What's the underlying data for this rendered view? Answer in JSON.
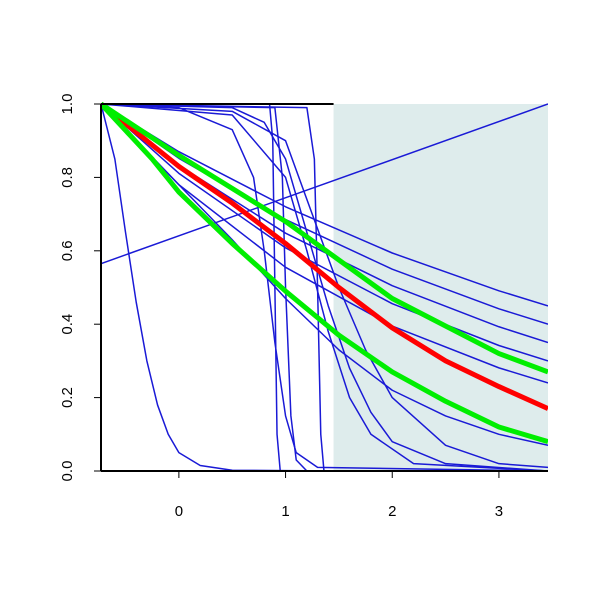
{
  "chart_data": {
    "type": "line",
    "xlim": [
      -0.73,
      3.46
    ],
    "ylim": [
      0,
      1
    ],
    "xticks": [
      0,
      1,
      2,
      3
    ],
    "yticks": [
      {
        "value": 0,
        "label": "0.0"
      },
      {
        "value": 0.2,
        "label": "0.2"
      },
      {
        "value": 0.4,
        "label": "0.4"
      },
      {
        "value": 0.6,
        "label": "0.6"
      },
      {
        "value": 0.8,
        "label": "0.8"
      },
      {
        "value": 1,
        "label": "1.0"
      }
    ],
    "shaded_region": {
      "x": [
        1.45,
        3.46
      ],
      "color": "#deecec"
    },
    "series": [
      {
        "color": "#1a1ad6",
        "linewidth": 1.5,
        "x": [
          -0.73,
          3.46
        ],
        "values": [
          0.565,
          1.0
        ]
      },
      {
        "color": "#1a1ad6",
        "linewidth": 1.5,
        "x": [
          -0.73,
          -0.6,
          -0.5,
          -0.4,
          -0.3,
          -0.2,
          -0.1,
          0,
          0.2,
          0.5,
          1.5,
          3.46
        ],
        "values": [
          1,
          0.85,
          0.65,
          0.46,
          0.3,
          0.18,
          0.1,
          0.05,
          0.015,
          0.002,
          0,
          0
        ]
      },
      {
        "color": "#1a1ad6",
        "linewidth": 1.5,
        "x": [
          -0.73,
          0,
          0.5,
          1,
          1.5,
          2,
          2.5,
          3,
          3.46
        ],
        "values": [
          1,
          0.78,
          0.63,
          0.47,
          0.33,
          0.22,
          0.15,
          0.1,
          0.07
        ]
      },
      {
        "color": "#1a1ad6",
        "linewidth": 1.5,
        "x": [
          -0.73,
          0.85,
          0.88,
          0.9,
          0.92,
          0.95,
          3.46
        ],
        "values": [
          1,
          1,
          0.9,
          0.5,
          0.1,
          0,
          0
        ]
      },
      {
        "color": "#1a1ad6",
        "linewidth": 1.5,
        "x": [
          -0.73,
          0.9,
          0.97,
          1.0,
          1.05,
          1.1,
          1.2,
          3.46
        ],
        "values": [
          1,
          0.99,
          0.8,
          0.5,
          0.15,
          0.03,
          0,
          0
        ]
      },
      {
        "color": "#1a1ad6",
        "linewidth": 1.5,
        "x": [
          -0.73,
          1.2,
          1.27,
          1.3,
          1.33,
          1.36,
          3.46
        ],
        "values": [
          1,
          0.99,
          0.85,
          0.5,
          0.1,
          0,
          0
        ]
      },
      {
        "color": "#1a1ad6",
        "linewidth": 1.5,
        "x": [
          -0.73,
          0,
          0.5,
          0.7,
          0.8,
          0.9,
          1.0,
          1.1,
          1.3,
          3.46
        ],
        "values": [
          1,
          0.99,
          0.93,
          0.8,
          0.6,
          0.35,
          0.15,
          0.05,
          0.01,
          0
        ]
      },
      {
        "color": "#1a1ad6",
        "linewidth": 1.5,
        "x": [
          -0.73,
          0.5,
          0.8,
          1,
          1.2,
          1.4,
          1.6,
          1.8,
          2,
          2.5,
          3.46
        ],
        "values": [
          1,
          0.99,
          0.95,
          0.85,
          0.65,
          0.45,
          0.28,
          0.16,
          0.08,
          0.02,
          0
        ]
      },
      {
        "color": "#1a1ad6",
        "linewidth": 1.5,
        "x": [
          -0.73,
          0.5,
          1,
          1.25,
          1.5,
          1.75,
          2,
          2.5,
          3,
          3.46
        ],
        "values": [
          1,
          0.98,
          0.9,
          0.7,
          0.5,
          0.33,
          0.2,
          0.07,
          0.02,
          0.01
        ]
      },
      {
        "color": "#1a1ad6",
        "linewidth": 1.5,
        "x": [
          -0.73,
          0.5,
          1,
          1.2,
          1.4,
          1.6,
          1.8,
          2.2,
          3.46
        ],
        "values": [
          1,
          0.97,
          0.8,
          0.6,
          0.38,
          0.2,
          0.1,
          0.02,
          0
        ]
      },
      {
        "color": "#1a1ad6",
        "linewidth": 1.5,
        "x": [
          -0.73,
          0,
          1,
          2,
          3,
          3.46
        ],
        "values": [
          1,
          0.87,
          0.72,
          0.594,
          0.491,
          0.45
        ]
      },
      {
        "color": "#1a1ad6",
        "linewidth": 1.5,
        "x": [
          -0.73,
          0,
          1,
          2,
          3,
          3.46
        ],
        "values": [
          1,
          0.852,
          0.685,
          0.55,
          0.442,
          0.4
        ]
      },
      {
        "color": "#1a1ad6",
        "linewidth": 1.5,
        "x": [
          -0.73,
          0,
          1,
          2,
          3,
          3.46
        ],
        "values": [
          1,
          0.833,
          0.648,
          0.505,
          0.393,
          0.35
        ]
      },
      {
        "color": "#1a1ad6",
        "linewidth": 1.5,
        "x": [
          -0.73,
          0,
          1,
          2,
          3,
          3.46
        ],
        "values": [
          1,
          0.811,
          0.608,
          0.456,
          0.342,
          0.3
        ]
      },
      {
        "color": "#1a1ad6",
        "linewidth": 1.5,
        "x": [
          -0.73,
          0,
          1,
          2,
          3,
          3.46
        ],
        "values": [
          1,
          0.78,
          0.555,
          0.395,
          0.281,
          0.24
        ]
      },
      {
        "color": "#ff0000",
        "linewidth": 5,
        "x": [
          -0.73,
          0,
          0.5,
          1,
          1.5,
          2,
          2.5,
          3,
          3.46
        ],
        "values": [
          1,
          0.83,
          0.73,
          0.62,
          0.5,
          0.39,
          0.3,
          0.23,
          0.17
        ]
      },
      {
        "color": "#00ee00",
        "linewidth": 5,
        "x": [
          -0.73,
          0,
          1,
          2,
          3,
          3.46
        ],
        "values": [
          1,
          0.86,
          0.68,
          0.47,
          0.32,
          0.27
        ]
      },
      {
        "color": "#00ee00",
        "linewidth": 5,
        "x": [
          -0.73,
          -0.25,
          0,
          0.5,
          1,
          1.5,
          2,
          2.5,
          3,
          3.46
        ],
        "values": [
          1,
          0.85,
          0.76,
          0.62,
          0.49,
          0.37,
          0.27,
          0.19,
          0.12,
          0.08
        ]
      }
    ]
  }
}
